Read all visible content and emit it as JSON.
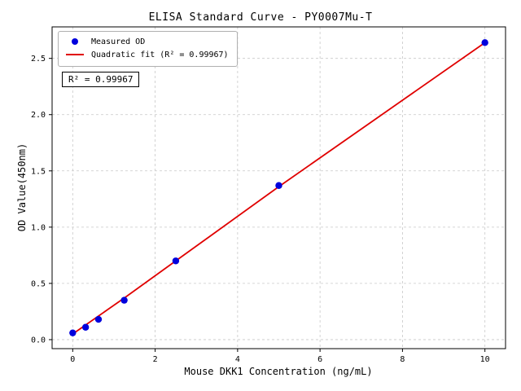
{
  "chart_data": {
    "type": "scatter",
    "title": "ELISA Standard Curve - PY0007Mu-T",
    "xlabel": "Mouse DKK1 Concentration (ng/mL)",
    "ylabel": "OD Value(450nm)",
    "xlim": [
      -0.5,
      10.5
    ],
    "ylim": [
      -0.08,
      2.78
    ],
    "xticks": [
      0,
      2,
      4,
      6,
      8,
      10
    ],
    "xtick_labels": [
      "0",
      "2",
      "4",
      "6",
      "8",
      "10"
    ],
    "yticks": [
      0.0,
      0.5,
      1.0,
      1.5,
      2.0,
      2.5
    ],
    "ytick_labels": [
      "0.0",
      "0.5",
      "1.0",
      "1.5",
      "2.0",
      "2.5"
    ],
    "grid": true,
    "legend_position": "upper left",
    "annotation": "R² = 0.99967",
    "colors": {
      "scatter": "#0000dd",
      "fit_line": "#e00000",
      "grid": "#c8c8c8",
      "axis": "#000000"
    },
    "series": [
      {
        "name": "Measured OD",
        "type": "scatter",
        "color": "#0000dd",
        "x": [
          0,
          0.3125,
          0.625,
          1.25,
          2.5,
          5,
          10
        ],
        "y": [
          0.06,
          0.11,
          0.18,
          0.35,
          0.7,
          1.37,
          2.64
        ]
      },
      {
        "name": "Quadratic fit (R² = 0.99967)",
        "type": "line",
        "color": "#e00000",
        "x": [
          0,
          1.25,
          2.5,
          5,
          7.5,
          10
        ],
        "y": [
          0.05,
          0.37,
          0.7,
          1.36,
          2.0,
          2.64
        ]
      }
    ]
  }
}
